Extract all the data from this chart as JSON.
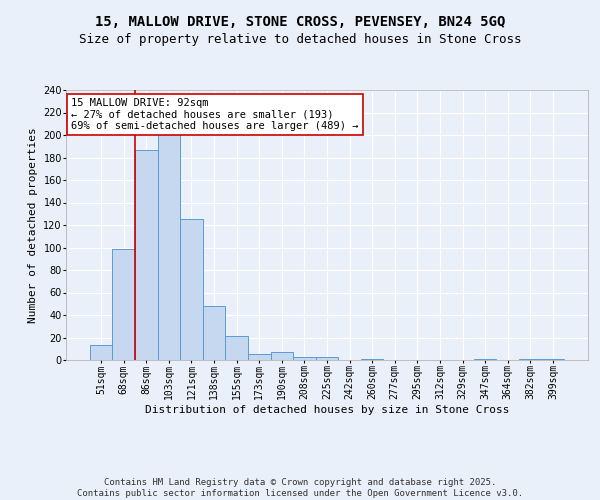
{
  "title": "15, MALLOW DRIVE, STONE CROSS, PEVENSEY, BN24 5GQ",
  "subtitle": "Size of property relative to detached houses in Stone Cross",
  "xlabel": "Distribution of detached houses by size in Stone Cross",
  "ylabel": "Number of detached properties",
  "bar_labels": [
    "51sqm",
    "68sqm",
    "86sqm",
    "103sqm",
    "121sqm",
    "138sqm",
    "155sqm",
    "173sqm",
    "190sqm",
    "208sqm",
    "225sqm",
    "242sqm",
    "260sqm",
    "277sqm",
    "295sqm",
    "312sqm",
    "329sqm",
    "347sqm",
    "364sqm",
    "382sqm",
    "399sqm"
  ],
  "bar_values": [
    13,
    99,
    187,
    201,
    125,
    48,
    21,
    5,
    7,
    3,
    3,
    0,
    1,
    0,
    0,
    0,
    0,
    1,
    0,
    1,
    1
  ],
  "bar_color": "#c5d8f0",
  "bar_edge_color": "#5b9bd5",
  "background_color": "#eaf0f9",
  "grid_color": "#ffffff",
  "annotation_text": "15 MALLOW DRIVE: 92sqm\n← 27% of detached houses are smaller (193)\n69% of semi-detached houses are larger (489) →",
  "annotation_box_color": "#ffffff",
  "annotation_box_edge": "#cc0000",
  "red_line_x": 1.5,
  "ylim": [
    0,
    240
  ],
  "yticks": [
    0,
    20,
    40,
    60,
    80,
    100,
    120,
    140,
    160,
    180,
    200,
    220,
    240
  ],
  "footer_line1": "Contains HM Land Registry data © Crown copyright and database right 2025.",
  "footer_line2": "Contains public sector information licensed under the Open Government Licence v3.0.",
  "title_fontsize": 10,
  "subtitle_fontsize": 9,
  "axis_label_fontsize": 8,
  "tick_fontsize": 7,
  "annotation_fontsize": 7.5,
  "footer_fontsize": 6.5
}
